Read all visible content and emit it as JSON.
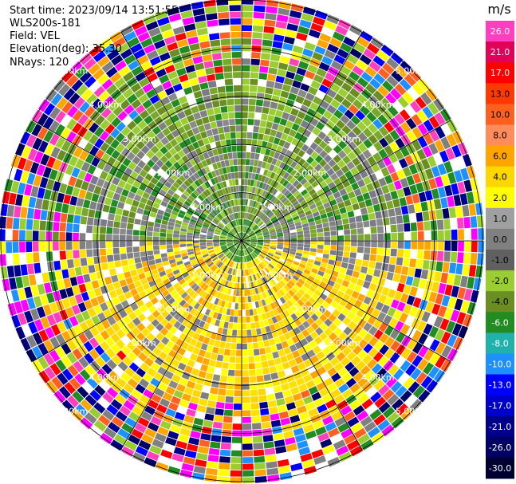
{
  "info": {
    "start_time": "Start time: 2023/09/14 13:51:55",
    "station": "WLS200s-181",
    "field": "Field: VEL",
    "elevation": "Elevation(deg): 35.30",
    "nrays": "NRays: 120"
  },
  "chart_data": {
    "type": "ppi",
    "field": "VEL",
    "nrays": 120,
    "range_rings_km": [
      1.0,
      2.0,
      3.0,
      4.0,
      5.0
    ],
    "ring_labels": [
      "1.00km",
      "2.00km",
      "3.00km",
      "4.00km",
      "5.00km"
    ],
    "max_range_km": 5.0,
    "colorbar": {
      "unit": "m/s",
      "ticks": [
        "26.0",
        "21.0",
        "17.0",
        "13.0",
        "10.0",
        "8.0",
        "6.0",
        "4.0",
        "2.0",
        "1.0",
        "0.0",
        "-1.0",
        "-2.0",
        "-4.0",
        "-6.0",
        "-8.0",
        "-10.0",
        "-13.0",
        "-17.0",
        "-21.0",
        "-26.0",
        "-30.0"
      ],
      "colors": [
        "#ff3fc0",
        "#e0005a",
        "#ff0000",
        "#ff3a00",
        "#ff6020",
        "#ff8c5a",
        "#ffa500",
        "#ffd700",
        "#ffff00",
        "#a0a0a0",
        "#808080",
        "#606060",
        "#9acd32",
        "#6b8e23",
        "#228b22",
        "#20b2aa",
        "#1e90ff",
        "#0000ff",
        "#0000cd",
        "#00008b",
        "#000066",
        "#000033"
      ]
    },
    "palette": {
      "near": [
        "#2e8b2e",
        "#228b22",
        "#9acd32"
      ],
      "north": [
        "#9acd32",
        "#6b8e23",
        "#228b22",
        "#7aa82a"
      ],
      "south": [
        "#ffff00",
        "#ffd700",
        "#ffa500",
        "#ffe000"
      ],
      "gray": [
        "#808080",
        "#7a7a8a",
        "#8a8a8a"
      ],
      "noise": [
        "#ff00ff",
        "#ff0000",
        "#0000ff",
        "#ffff00",
        "#9acd32",
        "#ffffff",
        "#000066",
        "#ffa500",
        "#ff3fc0",
        "#1e90ff",
        "#228b22",
        "#ff6020",
        "#808080",
        "#00008b"
      ]
    }
  }
}
